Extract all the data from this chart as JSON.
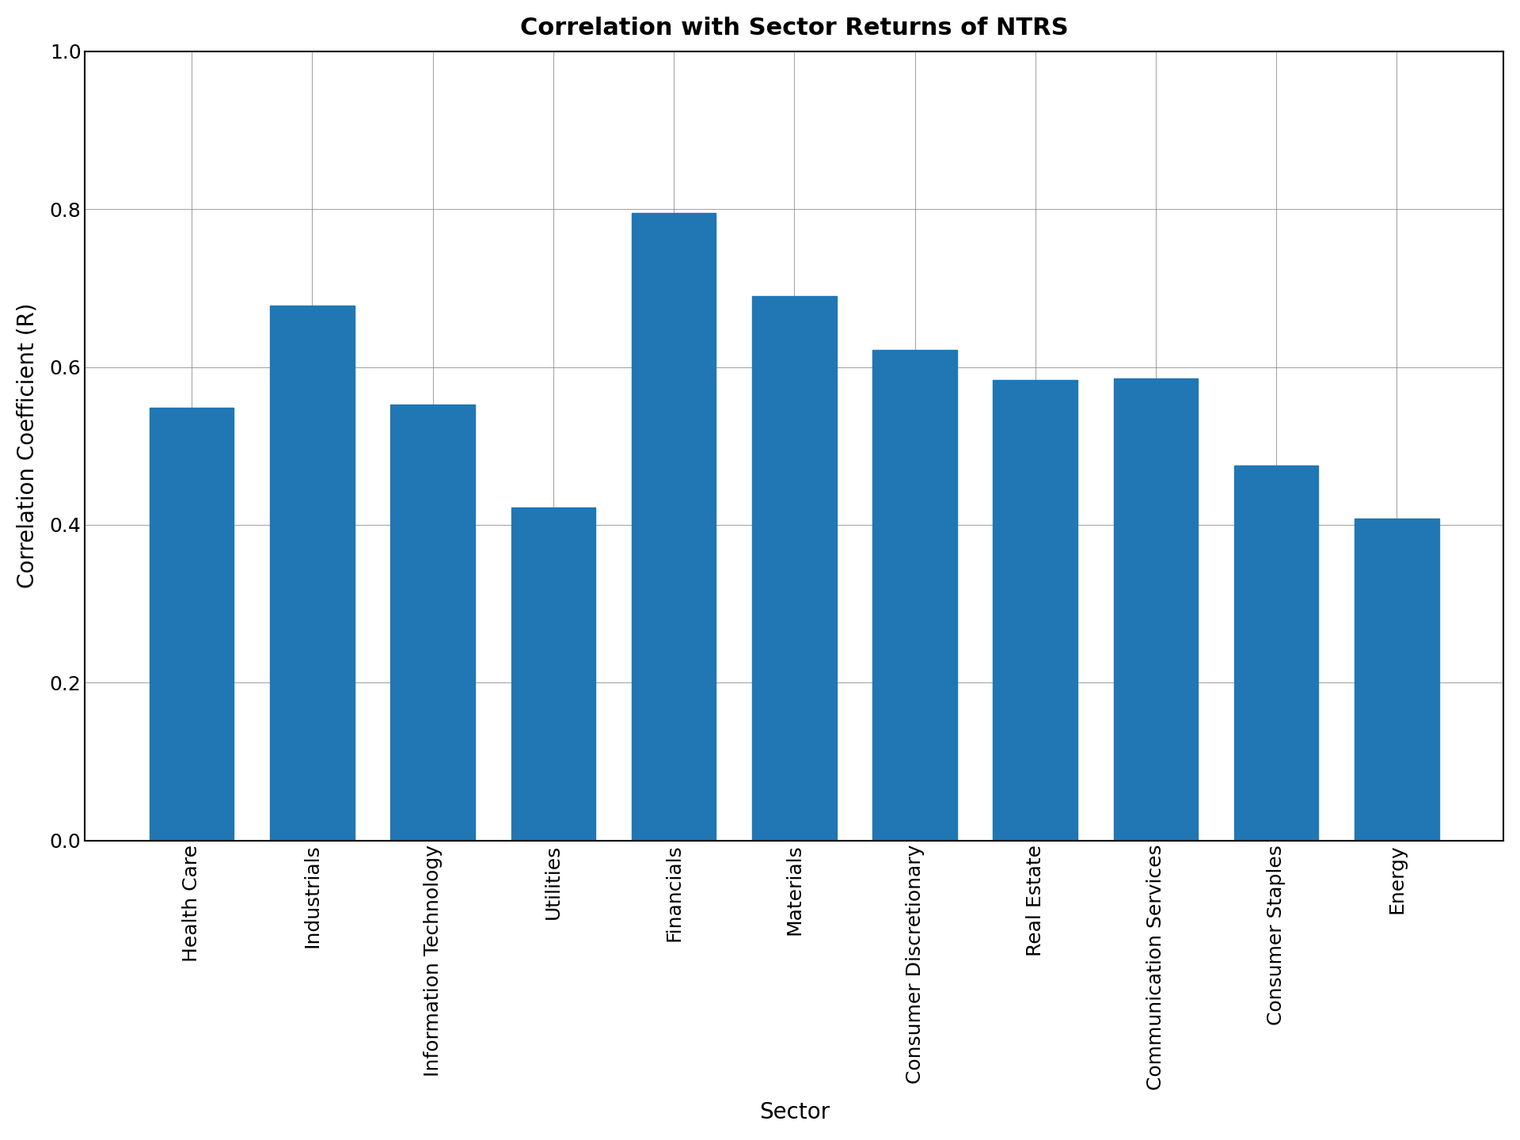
{
  "title": "Correlation with Sector Returns of NTRS",
  "xlabel": "Sector",
  "ylabel": "Correlation Coefficient (R)",
  "categories": [
    "Health Care",
    "Industrials",
    "Information Technology",
    "Utilities",
    "Financials",
    "Materials",
    "Consumer Discretionary",
    "Real Estate",
    "Communication Services",
    "Consumer Staples",
    "Energy"
  ],
  "values": [
    0.548,
    0.678,
    0.552,
    0.422,
    0.795,
    0.69,
    0.622,
    0.583,
    0.585,
    0.475,
    0.408
  ],
  "bar_color": "#2077b4",
  "ylim": [
    0.0,
    1.0
  ],
  "yticks": [
    0.0,
    0.2,
    0.4,
    0.6,
    0.8,
    1.0
  ],
  "title_fontsize": 22,
  "label_fontsize": 20,
  "tick_fontsize": 18,
  "figsize": [
    19.2,
    14.4
  ],
  "dpi": 100
}
